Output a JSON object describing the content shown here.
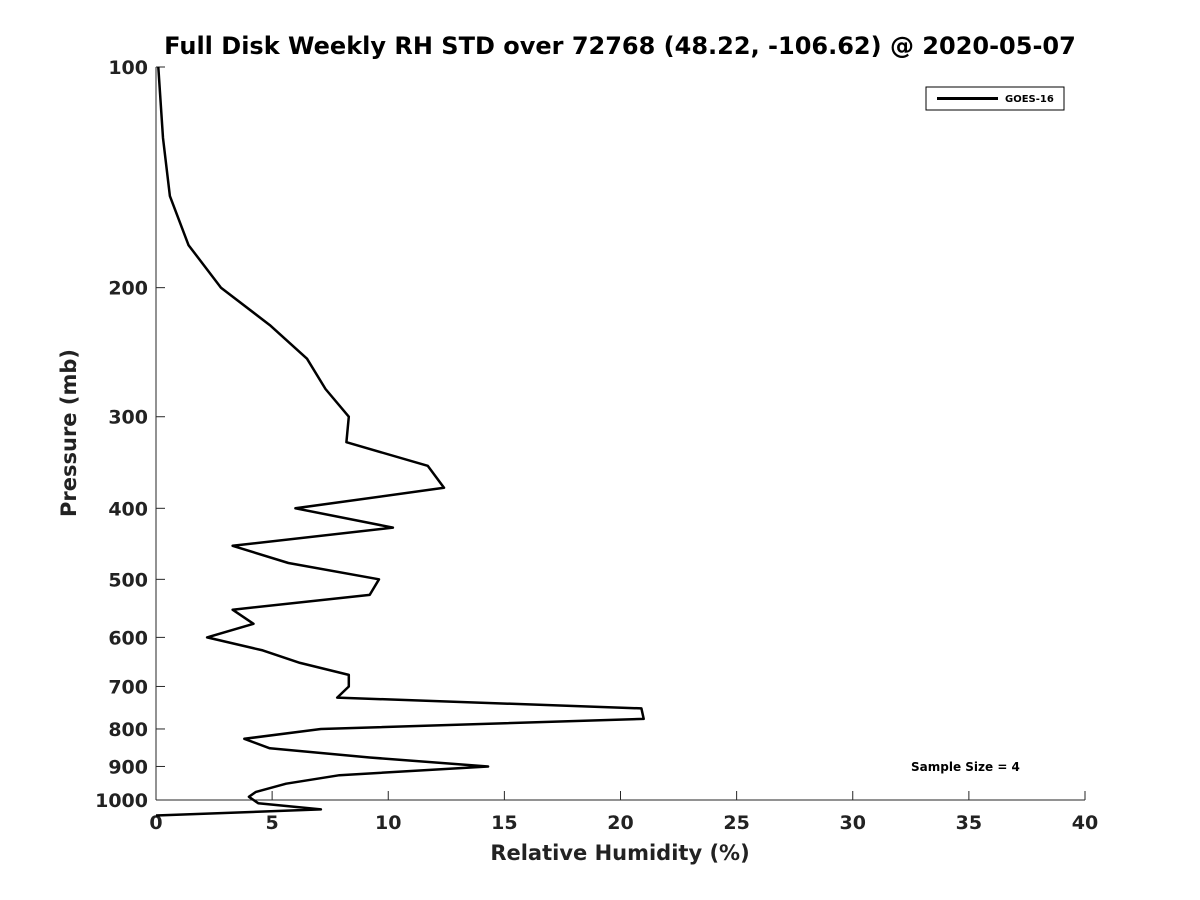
{
  "chart_data": {
    "type": "line",
    "title": "Full Disk Weekly RH STD over 72768 (48.22, -106.62) @ 2020-05-07",
    "xlabel": "Relative Humidity (%)",
    "ylabel": "Pressure (mb)",
    "xlim": [
      0,
      40
    ],
    "ylim": [
      100,
      1000
    ],
    "y_scale": "log",
    "y_reversed": true,
    "x_ticks": [
      0,
      5,
      10,
      15,
      20,
      25,
      30,
      35,
      40
    ],
    "x_tick_labels": [
      "0",
      "5",
      "10",
      "15",
      "20",
      "25",
      "30",
      "35",
      "40"
    ],
    "y_ticks": [
      100,
      200,
      300,
      400,
      500,
      600,
      700,
      800,
      900,
      1000
    ],
    "y_tick_labels": [
      "100",
      "200",
      "300",
      "400",
      "500",
      "600",
      "700",
      "800",
      "900",
      "1000"
    ],
    "grid": false,
    "legend_position": "top-right",
    "annotation": "Sample Size = 4",
    "series": [
      {
        "name": "GOES-16",
        "color": "#000000",
        "points": [
          [
            0.1,
            100
          ],
          [
            0.3,
            125
          ],
          [
            0.6,
            150
          ],
          [
            1.4,
            175
          ],
          [
            2.8,
            200
          ],
          [
            4.9,
            225
          ],
          [
            6.5,
            250
          ],
          [
            7.3,
            275
          ],
          [
            8.3,
            300
          ],
          [
            8.2,
            325
          ],
          [
            11.7,
            350
          ],
          [
            12.4,
            375
          ],
          [
            6.0,
            400
          ],
          [
            10.2,
            425
          ],
          [
            3.3,
            450
          ],
          [
            5.7,
            475
          ],
          [
            9.6,
            500
          ],
          [
            9.2,
            525
          ],
          [
            3.3,
            550
          ],
          [
            4.2,
            575
          ],
          [
            2.2,
            600
          ],
          [
            4.6,
            625
          ],
          [
            6.2,
            650
          ],
          [
            8.3,
            675
          ],
          [
            8.3,
            700
          ],
          [
            7.8,
            725
          ],
          [
            20.9,
            750
          ],
          [
            21.0,
            775
          ],
          [
            7.1,
            800
          ],
          [
            3.8,
            825
          ],
          [
            4.9,
            850
          ],
          [
            9.2,
            875
          ],
          [
            14.3,
            900
          ],
          [
            7.9,
            925
          ],
          [
            5.6,
            950
          ],
          [
            4.3,
            975
          ],
          [
            4.0,
            990
          ],
          [
            4.4,
            1010
          ],
          [
            7.1,
            1030
          ],
          [
            0.0,
            1050
          ]
        ]
      }
    ]
  }
}
